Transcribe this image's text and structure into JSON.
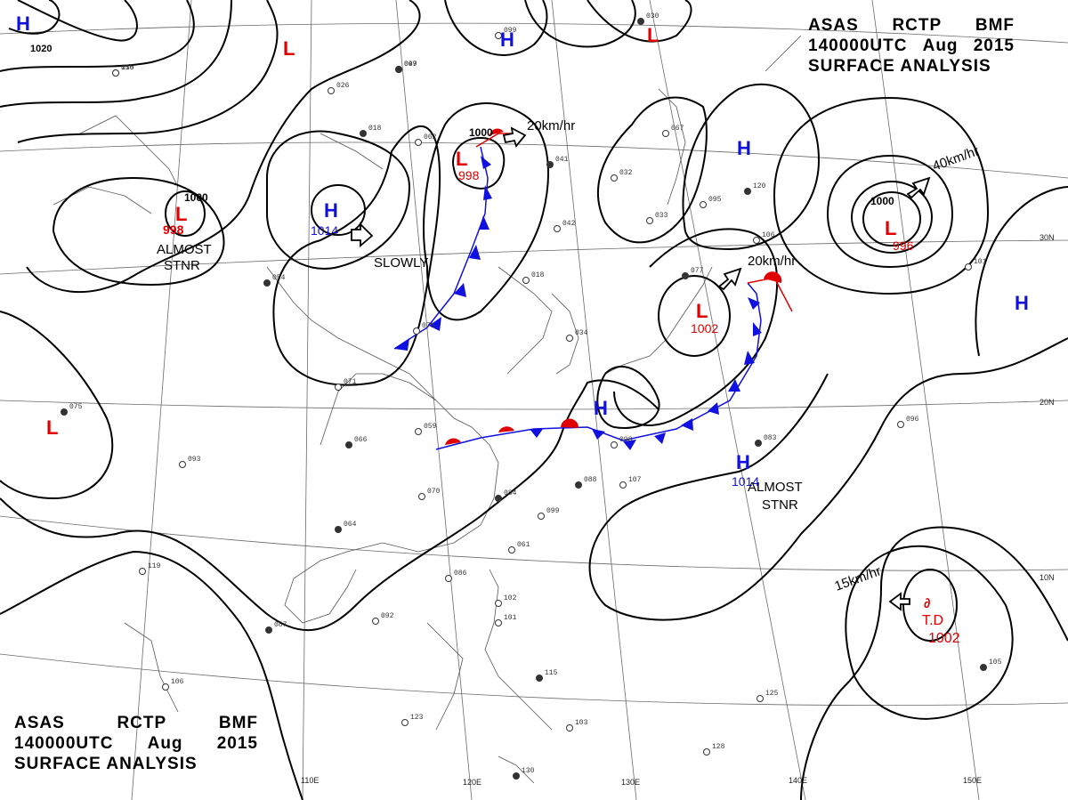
{
  "header_top": {
    "line1": [
      "ASAS",
      "RCTP",
      "BMF"
    ],
    "line2": [
      "140000UTC",
      "Aug",
      "2015"
    ],
    "line3": "SURFACE  ANALYSIS"
  },
  "header_bottom": {
    "line1": [
      "ASAS",
      "RCTP",
      "BMF"
    ],
    "line2": [
      "140000UTC",
      "Aug",
      "2015"
    ],
    "line3": "SURFACE  ANALYSIS"
  },
  "colors": {
    "high": "#1010e0",
    "low": "#e00000",
    "isobar": "#000000",
    "coast": "#444444",
    "grid": "#555555"
  },
  "grid_labels": {
    "longitude": [
      "110E",
      "120E",
      "130E",
      "140E",
      "150E"
    ],
    "latitude": [
      "30N",
      "20N",
      "10N"
    ]
  },
  "pressure_systems": [
    {
      "type": "H",
      "value": "1020"
    },
    {
      "type": "L",
      "value": ""
    },
    {
      "type": "L",
      "value": "998",
      "isobar": "1000",
      "note": [
        "ALMOST",
        "STNR"
      ]
    },
    {
      "type": "H",
      "value": "1014",
      "motion": "SLOWLY"
    },
    {
      "type": "L",
      "value": "998",
      "isobar": "1000",
      "motion": "20km/hr"
    },
    {
      "type": "H",
      "value": ""
    },
    {
      "type": "L",
      "value": ""
    },
    {
      "type": "H",
      "value": ""
    },
    {
      "type": "L",
      "value": "996",
      "isobar": "1000",
      "motion": "40km/hr"
    },
    {
      "type": "L",
      "value": "1002",
      "motion": "20km/hr"
    },
    {
      "type": "H",
      "value": ""
    },
    {
      "type": "H",
      "value": ""
    },
    {
      "type": "H",
      "value": "1014",
      "note": [
        "ALMOST",
        "STNR"
      ]
    },
    {
      "type": "L",
      "value": ""
    },
    {
      "type": "T.D",
      "value": "1002",
      "motion": "15km/hr"
    }
  ],
  "isobar_labels": [
    "1020",
    "1014",
    "1000",
    "998"
  ],
  "station_samples": [
    "158",
    "047",
    "026",
    "018",
    "062",
    "099",
    "030",
    "067",
    "095",
    "120",
    "106",
    "101",
    "054",
    "079",
    "071",
    "066",
    "059",
    "070",
    "064",
    "086",
    "092",
    "087",
    "106",
    "123",
    "130",
    "102",
    "101",
    "115",
    "103",
    "107",
    "088",
    "099",
    "096",
    "083",
    "125",
    "128",
    "105",
    "119",
    "093",
    "075",
    "042",
    "018",
    "041",
    "032",
    "033",
    "077",
    "098",
    "034",
    "084",
    "061",
    "010",
    "099"
  ]
}
